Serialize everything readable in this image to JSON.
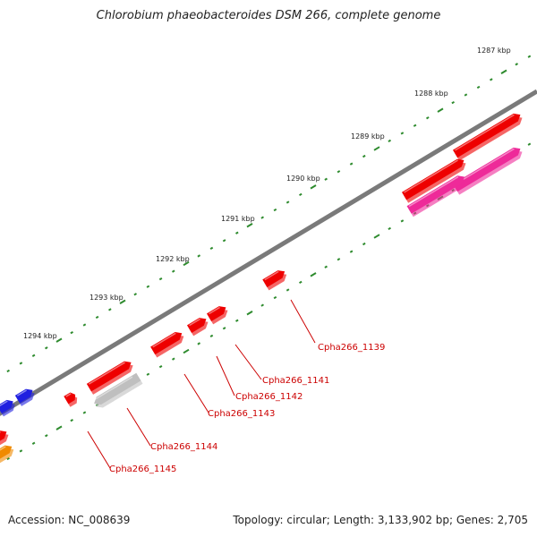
{
  "title": "Chlorobium phaeobacteroides DSM 266, complete genome",
  "footer": {
    "accession": "Accession: NC_008639",
    "summary": "Topology: circular; Length: 3,133,902 bp; Genes: 2,705"
  },
  "colors": {
    "backbone": "#7a7a7a",
    "tick": "#2e8b2e",
    "gene_red": "#ee0000",
    "gene_blue": "#1f1fe0",
    "gene_pink": "#ee2a99",
    "gene_gray": "#bfbfbf",
    "gene_orange": "#f08a00",
    "label_red": "#cc0000"
  },
  "ticks": [
    {
      "label": "1287 kbp"
    },
    {
      "label": "1288 kbp"
    },
    {
      "label": "1289 kbp"
    },
    {
      "label": "1290 kbp"
    },
    {
      "label": "1291 kbp"
    },
    {
      "label": "1292 kbp"
    },
    {
      "label": "1293 kbp"
    },
    {
      "label": "1294 kbp"
    }
  ],
  "gene_labels": [
    {
      "text": "Cpha266_1139"
    },
    {
      "text": "Cpha266_1141"
    },
    {
      "text": "Cpha266_1142"
    },
    {
      "text": "Cpha266_1143"
    },
    {
      "text": "Cpha266_1144"
    },
    {
      "text": "Cpha266_1145"
    }
  ]
}
